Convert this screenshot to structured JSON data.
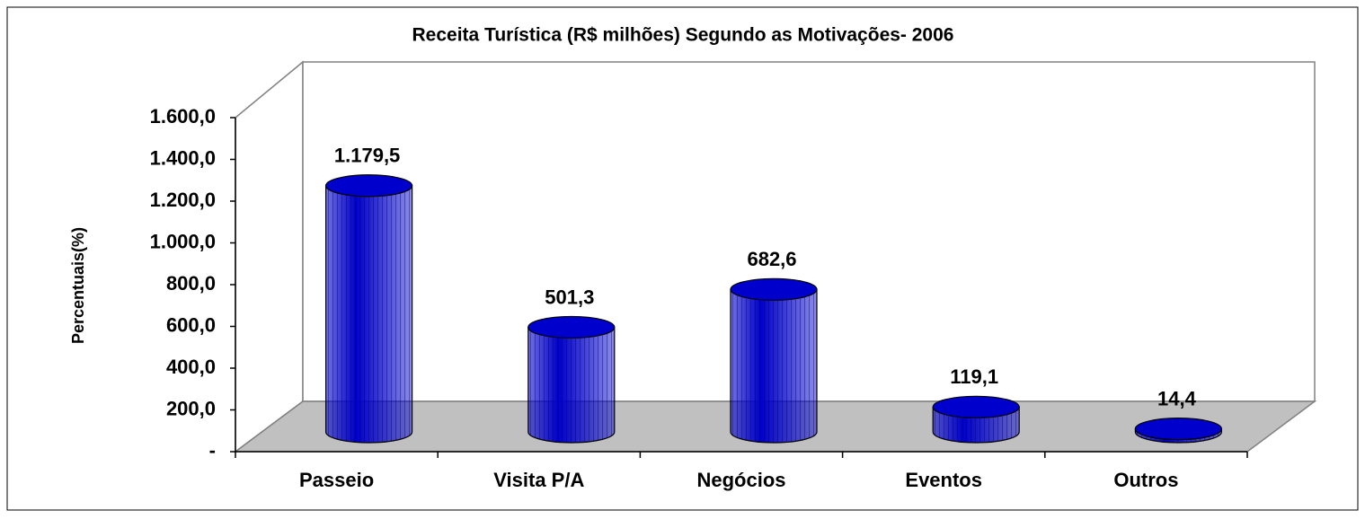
{
  "chart_data": {
    "type": "bar3d",
    "title": "Receita Turística (R$ milhões) Segundo as Motivações- 2006",
    "y_label": "Percentuais(%)",
    "categories": [
      "Passeio",
      "Visita P/A",
      "Negócios",
      "Eventos",
      "Outros"
    ],
    "values": [
      1179.5,
      501.3,
      682.6,
      119.1,
      14.4
    ],
    "value_labels": [
      "1.179,5",
      "501,3",
      "682,6",
      "119,1",
      "14,4"
    ],
    "color": "#0000cc",
    "ylim": [
      0,
      1600
    ],
    "yticks": [
      {
        "value": 0,
        "label": "-"
      },
      {
        "value": 200,
        "label": "200,0"
      },
      {
        "value": 400,
        "label": "400,0"
      },
      {
        "value": 600,
        "label": "600,0"
      },
      {
        "value": 800,
        "label": "800,0"
      },
      {
        "value": 1000,
        "label": "1.000,0"
      },
      {
        "value": 1200,
        "label": "1.200,0"
      },
      {
        "value": 1400,
        "label": "1.400,0"
      },
      {
        "value": 1600,
        "label": "1.600,0"
      }
    ]
  }
}
